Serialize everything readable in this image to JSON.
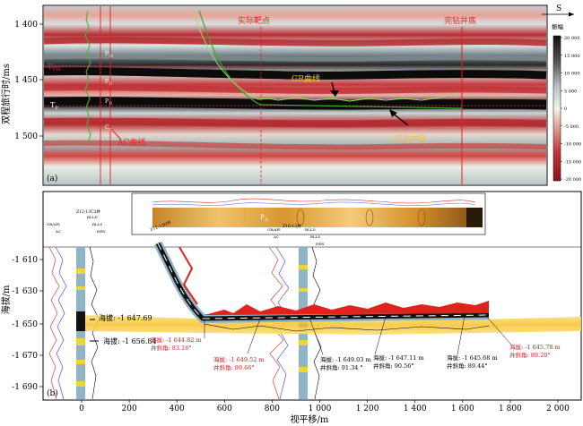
{
  "panel_a": {
    "label": "(a)",
    "compass": "S",
    "y_axis_label": "双程旅行时/ms",
    "y_ticks": [
      "1 400",
      "1 450",
      "1 500"
    ],
    "horizon_labels": {
      "tp1b": "T",
      "tp1b_sub": "P1b",
      "tp": "T",
      "tp_sub": "P"
    },
    "strata_labels": [
      "P",
      "P",
      "P",
      "C"
    ],
    "strata_subs": [
      "1b",
      "1l",
      "1l",
      "2"
    ],
    "annotations": {
      "target": "实际靶点",
      "end": "完钻井底",
      "gr": "GR曲线",
      "ac": "AC曲线",
      "track": "实钻井轨"
    },
    "colorbar": {
      "title": "振幅",
      "ticks": [
        "20 000",
        "15 000",
        "10 000",
        "5 000",
        "0",
        "-5 000",
        "-10 000",
        "-15 000",
        "-20 000"
      ]
    }
  },
  "panel_b": {
    "label": "(b)",
    "y_axis_label": "海拔/m",
    "x_axis_label": "视平移/m",
    "y_ticks": [
      "-1 610",
      "-1 630",
      "-1 650",
      "-1 670",
      "-1 690"
    ],
    "x_ticks": [
      "0",
      "200",
      "400",
      "600",
      "800",
      "1 000",
      "1 200",
      "1 400",
      "1 600",
      "1 800",
      "2 000"
    ],
    "wells": [
      "Z12-13C2井",
      "Z12-13H井",
      "Z16-12井"
    ],
    "log_heads": [
      "GR/API",
      "AC",
      "RLLD",
      "RLLS",
      "DEN"
    ],
    "inset_label": "P",
    "inset_sub": "1l",
    "elev_left_1": "海拔: -1 647.69",
    "elev_left_2": "海拔: -1 656.84",
    "callouts": [
      {
        "elev": "海拔: -1 644.82 m",
        "angle": "井斜角: 83.16°"
      },
      {
        "elev": "海拔: -1 649.52 m",
        "angle": "井斜角: 89.66°"
      },
      {
        "elev": "海拔: -1 649.03 m",
        "angle": "井斜角: 91.34 °"
      },
      {
        "elev": "海拔: -1 647.11 m",
        "angle": "井斜角: 90.56°"
      },
      {
        "elev": "海拔: -1 645.68 m",
        "angle": "井斜角: 89.44°"
      },
      {
        "elev": "海拔: -1 645.78 m",
        "angle": "井斜角: 89.20°"
      }
    ]
  }
}
